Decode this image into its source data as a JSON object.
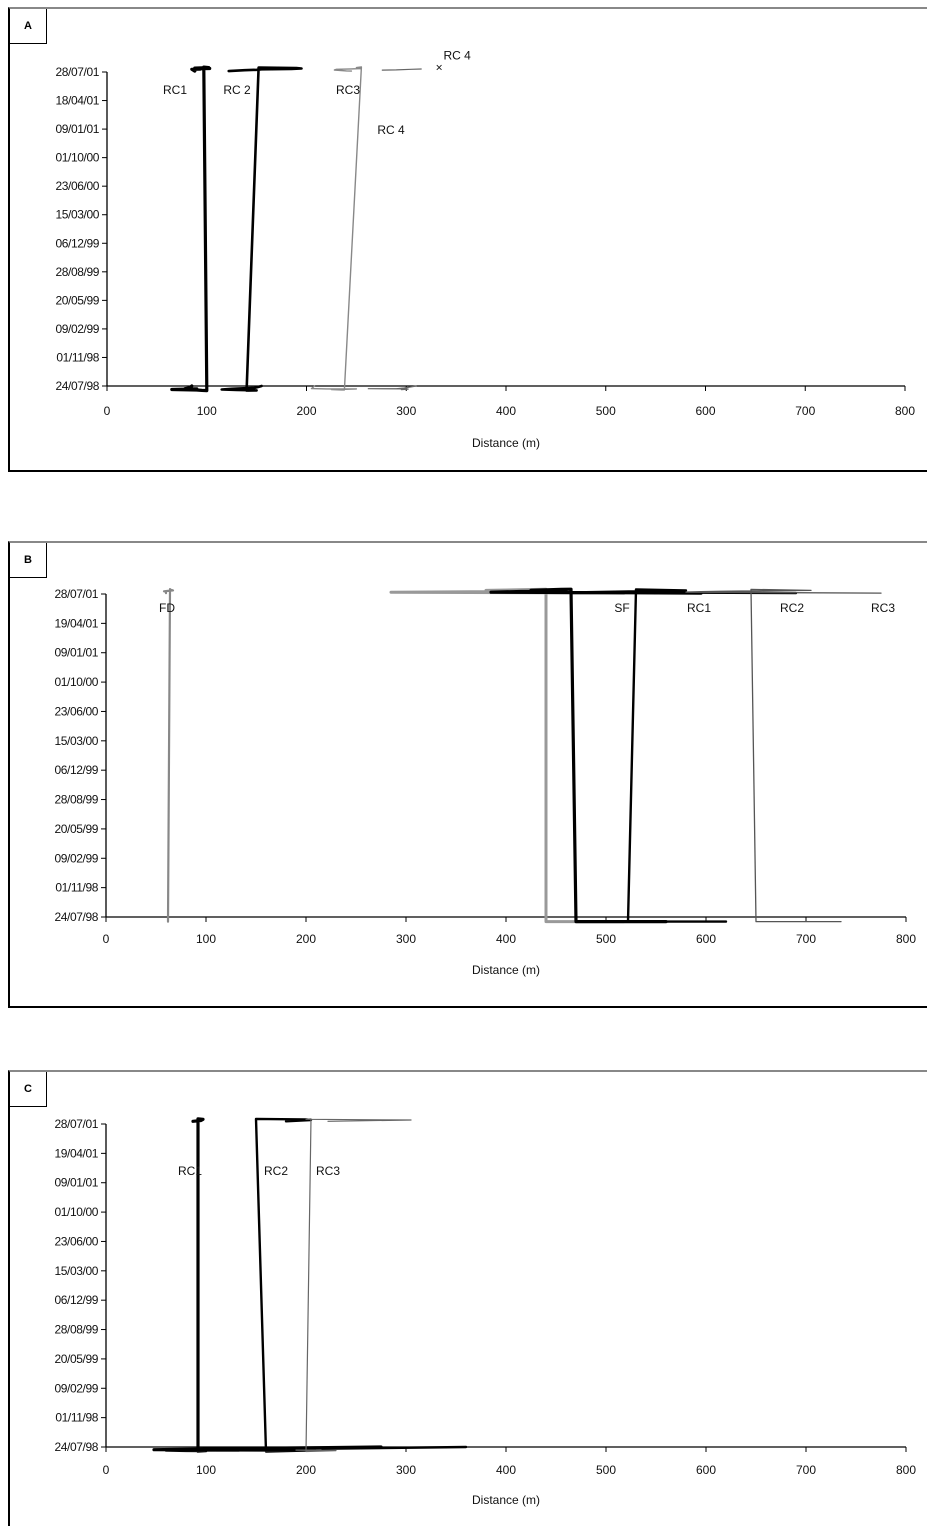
{
  "chart_data": [
    {
      "type": "line",
      "panel_label": "A",
      "xlabel": "Distance (m)",
      "xlim": [
        0,
        800
      ],
      "xticks": [
        0,
        100,
        200,
        300,
        400,
        500,
        600,
        700,
        800
      ],
      "ylabels": [
        "28/07/01",
        "18/04/01",
        "09/01/01",
        "01/10/00",
        "23/06/00",
        "15/03/00",
        "06/12/99",
        "28/08/99",
        "20/05/99",
        "09/02/99",
        "01/11/98",
        "24/07/98"
      ],
      "series": [
        {
          "name": "RC1",
          "label": "RC1",
          "color": "#000000",
          "width": 3.2,
          "points": [
            [
              85,
              "24/07/98"
            ],
            [
              83,
              "09/02/99"
            ],
            [
              78,
              "20/05/99"
            ],
            [
              90,
              "19/06/99"
            ],
            [
              80,
              "13/07/99"
            ],
            [
              65,
              "28/08/99"
            ],
            [
              90,
              "20/10/99"
            ],
            [
              95,
              "28/11/99"
            ],
            [
              100,
              "26/12/99"
            ],
            [
              97,
              "25/01/00"
            ],
            [
              102,
              "15/03/00"
            ],
            [
              88,
              "10/05/00"
            ],
            [
              103,
              "23/06/00"
            ],
            [
              88,
              "05/08/00"
            ],
            [
              93,
              "10/09/00"
            ],
            [
              85,
              "01/10/00"
            ],
            [
              88,
              "18/04/01"
            ]
          ]
        },
        {
          "name": "RC 2",
          "label": "RC 2",
          "color": "#000000",
          "width": 2.6,
          "points": [
            [
              155,
              "24/07/98"
            ],
            [
              152,
              "01/11/98"
            ],
            [
              148,
              "09/02/99"
            ],
            [
              125,
              "06/06/99"
            ],
            [
              115,
              "28/08/99"
            ],
            [
              130,
              "20/10/99"
            ],
            [
              150,
              "06/12/99"
            ],
            [
              140,
              "26/12/99"
            ],
            [
              152,
              "15/03/00"
            ],
            [
              190,
              "10/05/00"
            ],
            [
              195,
              "23/06/00"
            ],
            [
              185,
              "08/08/00"
            ],
            [
              155,
              "22/09/00"
            ],
            [
              150,
              "18/11/00"
            ],
            [
              138,
              "10/01/01"
            ],
            [
              122,
              "18/04/01"
            ]
          ]
        },
        {
          "name": "RC3",
          "label": "RC3",
          "color": "#888888",
          "width": 1.4,
          "points": [
            [
              208,
              "24/07/98"
            ],
            [
              206,
              "09/02/99"
            ],
            [
              205,
              "08/05/99"
            ],
            [
              220,
              "14/06/99"
            ],
            [
              240,
              "28/06/99"
            ],
            [
              250,
              "19/06/99"
            ],
            [
              235,
              "08/08/99"
            ],
            [
              225,
              "28/08/99"
            ],
            [
              238,
              "21/10/99"
            ],
            [
              255,
              "12/01/00"
            ],
            [
              250,
              "15/03/00"
            ],
            [
              255,
              "23/06/00"
            ],
            [
              245,
              "16/08/00"
            ],
            [
              230,
              "01/10/00"
            ],
            [
              228,
              "20/12/00"
            ],
            [
              240,
              "28/03/01"
            ],
            [
              245,
              "18/04/01"
            ]
          ]
        },
        {
          "name": "RC 4",
          "label": "RC 4",
          "color": "#666666",
          "width": 1.2,
          "points": [
            [
              310,
              "24/07/98"
            ],
            [
              298,
              "04/03/99"
            ],
            [
              290,
              "20/05/99"
            ],
            [
              262,
              "28/05/99"
            ],
            [
              300,
              "14/06/99"
            ],
            [
              302,
              "13/07/99"
            ],
            [
              295,
              "08/09/99"
            ]
          ]
        },
        {
          "name": "RC 4 segment 2",
          "label": "",
          "color": "#666666",
          "width": 1.2,
          "points": [
            [
              315,
              "18/08/00"
            ],
            [
              305,
              "01/10/00"
            ],
            [
              290,
              "30/11/00"
            ],
            [
              276,
              "29/12/00"
            ]
          ]
        }
      ],
      "markers": [
        {
          "label": "RC 4",
          "x": 333,
          "date": "18/02/00",
          "symbol": "×"
        }
      ]
    },
    {
      "type": "line",
      "panel_label": "B",
      "xlabel": "Distance (m)",
      "xlim": [
        0,
        800
      ],
      "xticks": [
        0,
        100,
        200,
        300,
        400,
        500,
        600,
        700,
        800
      ],
      "ylabels": [
        "28/07/01",
        "19/04/01",
        "09/01/01",
        "01/10/00",
        "23/06/00",
        "15/03/00",
        "06/12/99",
        "28/08/99",
        "20/05/99",
        "09/02/99",
        "01/11/98",
        "24/07/98"
      ],
      "series": [
        {
          "name": "FD",
          "label": "FD",
          "color": "#888888",
          "width": 2.2,
          "points": [
            [
              62,
              "06/12/99"
            ],
            [
              64,
              "04/02/00"
            ],
            [
              65,
              "10/05/00"
            ],
            [
              67,
              "23/06/00"
            ],
            [
              62,
              "21/08/00"
            ],
            [
              58,
              "01/10/00"
            ],
            [
              60,
              "10/11/00"
            ],
            [
              60,
              "09/01/01"
            ],
            [
              60,
              "19/04/01"
            ]
          ]
        },
        {
          "name": "SF",
          "label": "SF",
          "color": "#999999",
          "width": 3.0,
          "points": [
            [
              518,
              "15/12/99"
            ],
            [
              440,
              "06/12/99"
            ],
            [
              440,
              "25/02/00"
            ],
            [
              380,
              "23/06/00"
            ],
            [
              410,
              "01/10/00"
            ],
            [
              420,
              "20/10/00"
            ],
            [
              285,
              "09/01/01"
            ],
            [
              518,
              "19/04/01"
            ]
          ]
        },
        {
          "name": "RC1",
          "label": "RC1",
          "color": "#000000",
          "width": 3.2,
          "points": [
            [
              560,
              "15/12/99"
            ],
            [
              470,
              "06/12/99"
            ],
            [
              465,
              "14/02/00"
            ],
            [
              455,
              "15/03/00"
            ],
            [
              425,
              "23/06/00"
            ],
            [
              460,
              "24/09/00"
            ],
            [
              415,
              "22/10/00"
            ],
            [
              385,
              "09/01/01"
            ],
            [
              595,
              "19/04/01"
            ]
          ]
        },
        {
          "name": "RC2",
          "label": "RC2",
          "color": "#000000",
          "width": 2.4,
          "points": [
            [
              620,
              "15/12/99"
            ],
            [
              522,
              "06/12/99"
            ],
            [
              530,
              "15/03/00"
            ],
            [
              580,
              "23/06/00"
            ],
            [
              480,
              "09/01/01"
            ],
            [
              690,
              "19/04/01"
            ]
          ]
        },
        {
          "name": "RC3",
          "label": "RC3",
          "color": "#555555",
          "width": 1.3,
          "points": [
            [
              735,
              "15/12/99"
            ],
            [
              650,
              "06/12/99"
            ],
            [
              645,
              "15/03/00"
            ],
            [
              705,
              "23/06/00"
            ],
            [
              655,
              "15/08/00"
            ],
            [
              615,
              "01/10/00"
            ],
            [
              595,
              "20/11/00"
            ],
            [
              580,
              "09/01/01"
            ],
            [
              775,
              "19/04/01"
            ]
          ]
        }
      ]
    },
    {
      "type": "line",
      "panel_label": "C",
      "xlabel": "Distance (m)",
      "xlim": [
        0,
        800
      ],
      "xticks": [
        0,
        100,
        200,
        300,
        400,
        500,
        600,
        700,
        800
      ],
      "ylabels": [
        "28/07/01",
        "19/04/01",
        "09/01/01",
        "01/10/00",
        "23/06/00",
        "15/03/00",
        "06/12/99",
        "28/08/99",
        "20/05/99",
        "09/02/99",
        "01/11/98",
        "24/07/98"
      ],
      "series": [
        {
          "name": "RC1",
          "label": "RC1",
          "color": "#000000",
          "width": 3.2,
          "points": [
            [
              275,
              "24/07/98"
            ],
            [
              48,
              "20/05/99"
            ],
            [
              133,
              "17/06/99"
            ],
            [
              60,
              "25/06/99"
            ],
            [
              80,
              "15/08/99"
            ],
            [
              100,
              "28/08/99"
            ],
            [
              92,
              "29/10/99"
            ],
            [
              92,
              "17/01/00"
            ],
            [
              97,
              "15/03/00"
            ],
            [
              95,
              "13/07/00"
            ],
            [
              87,
              "01/10/00"
            ]
          ]
        },
        {
          "name": "RC2",
          "label": "RC2",
          "color": "#000000",
          "width": 2.4,
          "points": [
            [
              360,
              "24/07/98"
            ],
            [
              140,
              "20/05/99"
            ],
            [
              192,
              "08/06/99"
            ],
            [
              105,
              "18/07/99"
            ],
            [
              200,
              "28/08/99"
            ],
            [
              160,
              "25/11/99"
            ],
            [
              150,
              "18/01/00"
            ],
            [
              200,
              "15/03/00"
            ],
            [
              205,
              "20/05/00"
            ],
            [
              180,
              "01/10/00"
            ]
          ]
        },
        {
          "name": "RC3",
          "label": "RC3",
          "color": "#666666",
          "width": 1.2,
          "points": [
            [
              215,
              "23/05/99"
            ],
            [
              210,
              "17/06/99"
            ],
            [
              190,
              "26/06/99"
            ],
            [
              230,
              "28/08/99"
            ],
            [
              200,
              "25/11/99"
            ],
            [
              205,
              "18/01/00"
            ],
            [
              200,
              "02/03/00"
            ],
            [
              305,
              "10/05/00"
            ],
            [
              222,
              "01/10/00"
            ]
          ]
        }
      ]
    }
  ]
}
